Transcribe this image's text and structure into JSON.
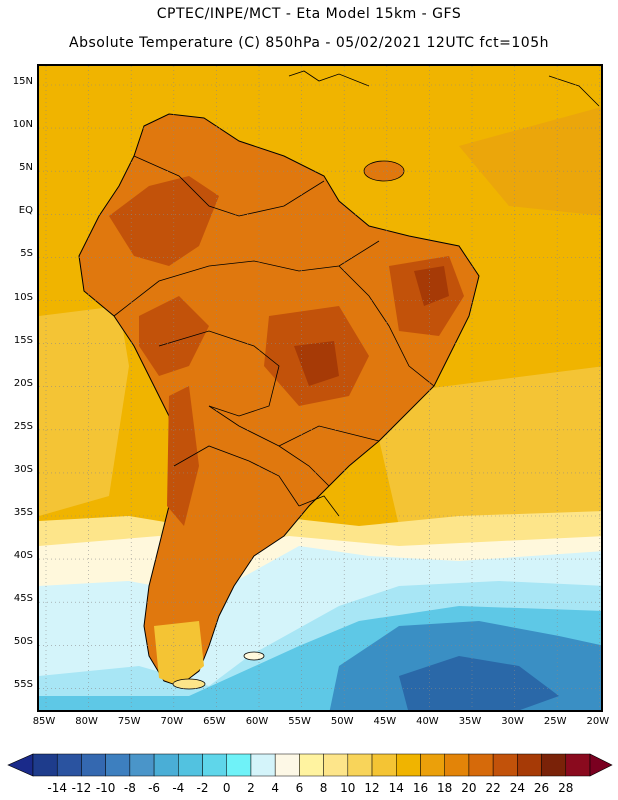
{
  "header": {
    "line1": "CPTEC/INPE/MCT -  Eta Model 15km - GFS",
    "line2": "Absolute Temperature (C) 850hPa - 05/02/2021 12UTC fct=105h"
  },
  "map": {
    "region": "South America",
    "variable": "Absolute Temperature at 850hPa",
    "lat_ticks": [
      "15N",
      "10N",
      "5N",
      "EQ",
      "5S",
      "10S",
      "15S",
      "20S",
      "25S",
      "30S",
      "35S",
      "40S",
      "45S",
      "50S",
      "55S"
    ],
    "lon_ticks": [
      "85W",
      "80W",
      "75W",
      "70W",
      "65W",
      "60W",
      "55W",
      "50W",
      "45W",
      "40W",
      "35W",
      "30W",
      "25W",
      "20W"
    ],
    "colors": {
      "ocean_warm": "#f0b400",
      "ocean_mild": "#f5c842",
      "land_hot": "#e0780e",
      "land_very_hot": "#c2520a",
      "land_extreme": "#a63a06",
      "cool": "#fff8dc",
      "cold": "#a8e6f5",
      "colder": "#5ec8e6",
      "coldest": "#3a8fc4",
      "deepest": "#2a68a8"
    }
  },
  "colorbar": {
    "labels": [
      "-14",
      "-12",
      "-10",
      "-8",
      "-6",
      "-4",
      "-2",
      "0",
      "2",
      "4",
      "6",
      "8",
      "10",
      "12",
      "14",
      "16",
      "18",
      "20",
      "22",
      "24",
      "26",
      "28"
    ],
    "colors": [
      "#1e3c8c",
      "#2a53a0",
      "#3468b0",
      "#3d7fbf",
      "#4a95c9",
      "#4aaed6",
      "#52c2e0",
      "#5fd6ea",
      "#6ff2f8",
      "#d4f4fa",
      "#fdf8e6",
      "#fff3a0",
      "#fde58a",
      "#f8d45a",
      "#f4c434",
      "#f0b400",
      "#eba00a",
      "#e38408",
      "#d66a0a",
      "#c2520a",
      "#a63a06",
      "#7a2208",
      "#8a0a1e"
    ],
    "low_arrow_color": "#1a2a8a",
    "high_arrow_color": "#7a0020"
  }
}
